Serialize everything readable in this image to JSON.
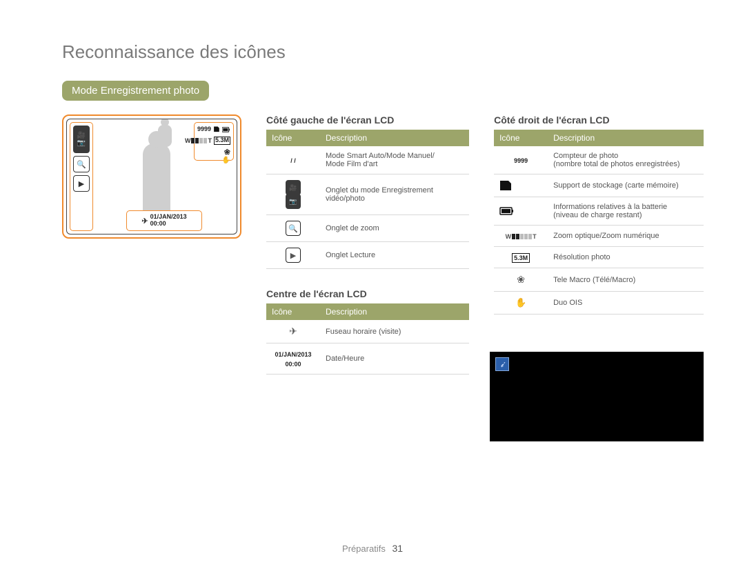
{
  "page": {
    "title": "Reconnaissance des icônes",
    "section_pill": "Mode Enregistrement photo",
    "footer_section": "Préparatifs",
    "page_number": "31"
  },
  "lcd": {
    "counter": "9999",
    "date": "01/JAN/2013",
    "time": "00:00"
  },
  "tables": {
    "left": {
      "heading": "Côté gauche de l'écran LCD",
      "col_icon": "Icône",
      "col_desc": "Description",
      "rows": [
        {
          "icon_text": "/    /",
          "desc": "Mode Smart Auto/Mode Manuel/\nMode Film d'art"
        },
        {
          "icon_html": "video_photo_tab",
          "desc": "Onglet du mode Enregistrement vidéo/photo"
        },
        {
          "icon_html": "zoom_tab",
          "desc": "Onglet de zoom"
        },
        {
          "icon_html": "play_tab",
          "desc": "Onglet Lecture"
        }
      ]
    },
    "center": {
      "heading": "Centre de l'écran LCD",
      "col_icon": "Icône",
      "col_desc": "Description",
      "rows": [
        {
          "icon_html": "timezone",
          "desc": "Fuseau horaire (visite)"
        },
        {
          "icon_text": "01/JAN/2013\n00:00",
          "desc": "Date/Heure"
        }
      ]
    },
    "right": {
      "heading": "Côté droit de l'écran LCD",
      "col_icon": "Icône",
      "col_desc": "Description",
      "rows": [
        {
          "icon_text": "9999",
          "desc": "Compteur de photo\n(nombre total de photos enregistrées)"
        },
        {
          "icon_html": "card",
          "desc": "Support de stockage (carte mémoire)"
        },
        {
          "icon_html": "battery",
          "desc": "Informations relatives à la batterie\n(niveau de charge restant)"
        },
        {
          "icon_html": "zoombar",
          "desc": "Zoom optique/Zoom numérique"
        },
        {
          "icon_html": "res",
          "desc": "Résolution photo"
        },
        {
          "icon_html": "tulip",
          "desc": "Tele Macro (Télé/Macro)"
        },
        {
          "icon_html": "ois",
          "desc": "Duo OIS"
        }
      ]
    }
  }
}
